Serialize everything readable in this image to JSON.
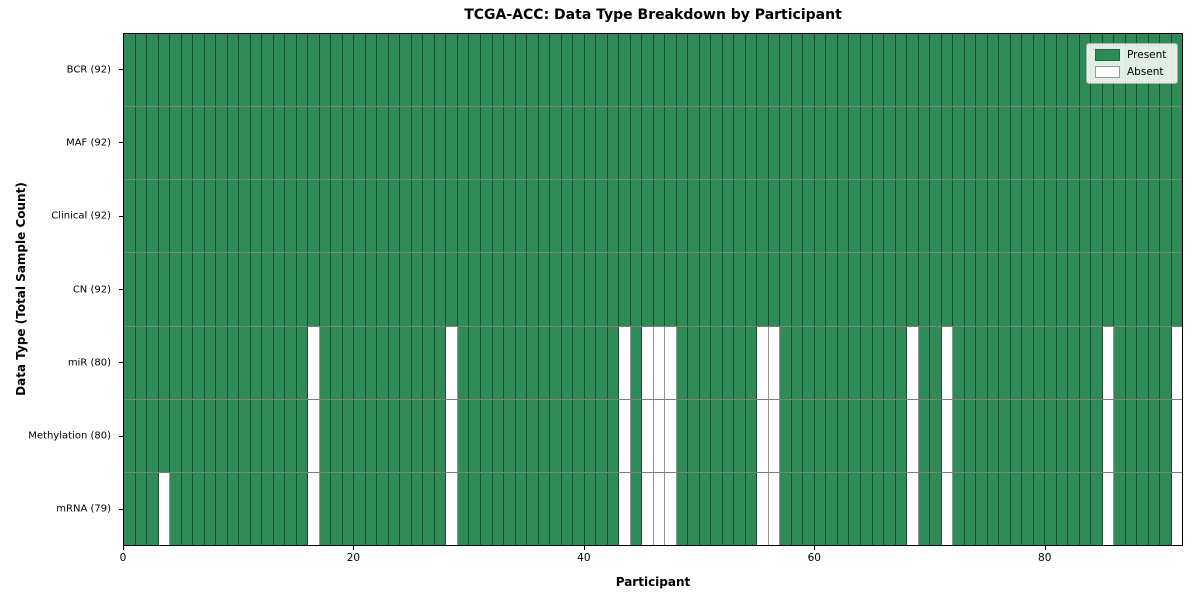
{
  "title": "TCGA-ACC: Data Type Breakdown by Participant",
  "xlabel": "Participant",
  "ylabel": "Data Type (Total Sample Count)",
  "legend": {
    "position": "upper right",
    "present_label": "Present",
    "absent_label": "Absent"
  },
  "colors": {
    "present": "#2e8b57",
    "absent": "#ffffff",
    "row_separator": "#7f7f7f",
    "plot_border": "#000000"
  },
  "chart_data": {
    "type": "heatmap",
    "title": "TCGA-ACC: Data Type Breakdown by Participant",
    "xlabel": "Participant",
    "ylabel": "Data Type (Total Sample Count)",
    "n_participants": 92,
    "xlim": [
      0,
      92
    ],
    "x_ticks": [
      0,
      20,
      40,
      60,
      80
    ],
    "grid": false,
    "legend_entries": [
      "Present",
      "Absent"
    ],
    "rows": [
      {
        "label": "BCR (92)",
        "present_count": 92,
        "absent_participants": []
      },
      {
        "label": "MAF (92)",
        "present_count": 92,
        "absent_participants": []
      },
      {
        "label": "Clinical (92)",
        "present_count": 92,
        "absent_participants": []
      },
      {
        "label": "CN (92)",
        "present_count": 92,
        "absent_participants": []
      },
      {
        "label": "miR (80)",
        "present_count": 80,
        "absent_participants": [
          16,
          28,
          43,
          45,
          46,
          47,
          55,
          56,
          68,
          71,
          85,
          91
        ]
      },
      {
        "label": "Methylation (80)",
        "present_count": 80,
        "absent_participants": [
          16,
          28,
          43,
          45,
          46,
          47,
          55,
          56,
          68,
          71,
          85,
          91
        ]
      },
      {
        "label": "mRNA (79)",
        "present_count": 79,
        "absent_participants": [
          3,
          16,
          28,
          43,
          45,
          46,
          47,
          55,
          56,
          68,
          71,
          85,
          91
        ]
      }
    ]
  }
}
